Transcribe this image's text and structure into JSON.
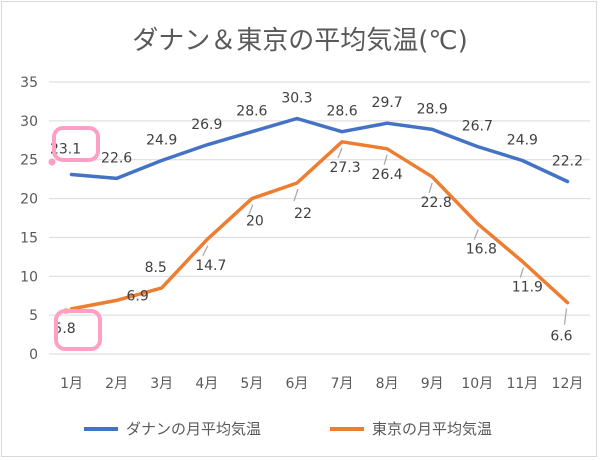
{
  "chart_data": {
    "type": "line",
    "title": "ダナン＆東京の平均気温(℃)",
    "categories": [
      "1月",
      "2月",
      "3月",
      "4月",
      "5月",
      "6月",
      "7月",
      "8月",
      "9月",
      "10月",
      "11月",
      "12月"
    ],
    "ylim": [
      0,
      35
    ],
    "yticks": [
      0,
      5,
      10,
      15,
      20,
      25,
      30,
      35
    ],
    "grid": true,
    "legend_position": "bottom",
    "series": [
      {
        "name": "ダナンの月平均気温",
        "color": "#4472c4",
        "values": [
          23.1,
          22.6,
          24.9,
          26.9,
          28.6,
          30.3,
          28.6,
          29.7,
          28.9,
          26.7,
          24.9,
          22.2
        ],
        "labels": [
          "23.1",
          "22.6",
          "24.9",
          "26.9",
          "28.6",
          "30.3",
          "28.6",
          "29.7",
          "28.9",
          "26.7",
          "24.9",
          "22.2"
        ]
      },
      {
        "name": "東京の月平均気温",
        "color": "#ed7d31",
        "values": [
          5.8,
          6.9,
          8.5,
          14.7,
          20,
          22,
          27.3,
          26.4,
          22.8,
          16.8,
          11.9,
          6.6
        ],
        "labels": [
          "5.8",
          "6.9",
          "8.5",
          "14.7",
          "20",
          "22",
          "27.3",
          "26.4",
          "22.8",
          "16.8",
          "11.9",
          "6.6"
        ]
      }
    ],
    "highlight_color": "#ff9fc4"
  }
}
